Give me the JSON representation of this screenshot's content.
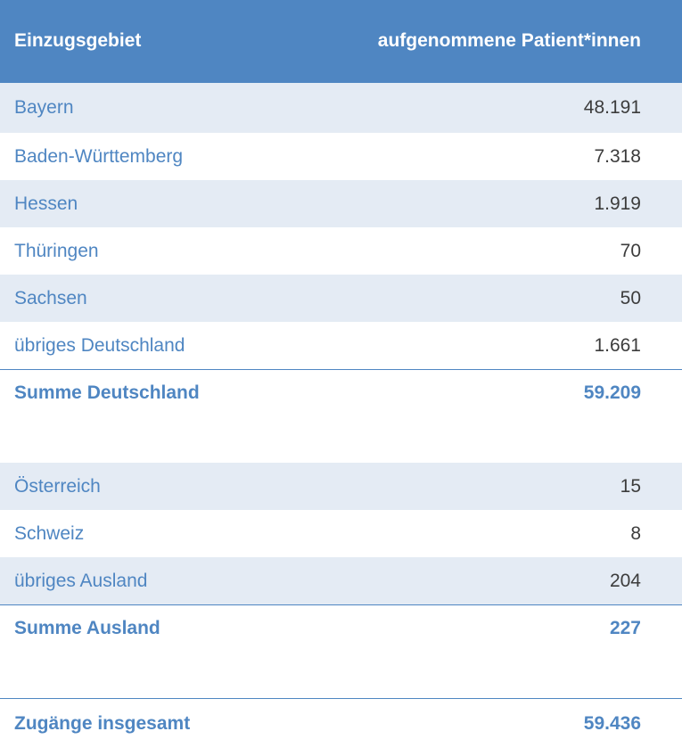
{
  "header": {
    "col_region": "Einzugsgebiet",
    "col_patients": "aufgenommene Patient*innen"
  },
  "germany": {
    "rows": [
      {
        "region": "Bayern",
        "value": "48.191"
      },
      {
        "region": "Baden-Württemberg",
        "value": "7.318"
      },
      {
        "region": "Hessen",
        "value": "1.919"
      },
      {
        "region": "Thüringen",
        "value": "70"
      },
      {
        "region": "Sachsen",
        "value": "50"
      },
      {
        "region": "übriges Deutschland",
        "value": "1.661"
      }
    ],
    "sum_label": "Summe Deutschland",
    "sum_value": "59.209"
  },
  "abroad": {
    "rows": [
      {
        "region": "Österreich",
        "value": "15"
      },
      {
        "region": "Schweiz",
        "value": "8"
      },
      {
        "region": "übriges Ausland",
        "value": "204"
      }
    ],
    "sum_label": "Summe Ausland",
    "sum_value": "227"
  },
  "total": {
    "label": "Zugänge insgesamt",
    "value": "59.436"
  }
}
